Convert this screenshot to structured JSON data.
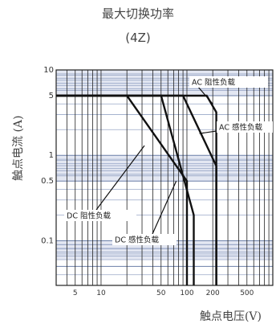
{
  "title": "最大切换功率",
  "subtitle": "(4Z)",
  "chart_data": {
    "type": "line",
    "xlabel": "触点电压(V)",
    "ylabel": "触点电流 (A)",
    "x_scale": "log",
    "y_scale": "log",
    "xlim": [
      3,
      1000
    ],
    "ylim": [
      0.03,
      10
    ],
    "x_ticks": [
      5,
      10,
      50,
      100,
      200,
      500
    ],
    "y_ticks": [
      0.1,
      0.5,
      1,
      5,
      10
    ],
    "x_tick_labels": [
      "5",
      "10",
      "50",
      "100",
      "200",
      "500"
    ],
    "y_tick_labels": [
      "0.1",
      "0.5",
      "1",
      "5",
      "10"
    ],
    "grid": true,
    "series": [
      {
        "name": "AC 阻性负载",
        "x": [
          3,
          170,
          220,
          220
        ],
        "y": [
          5,
          5,
          3.2,
          0.03
        ]
      },
      {
        "name": "AC 感性负载",
        "x": [
          3,
          90,
          220,
          220
        ],
        "y": [
          5,
          5,
          0.75,
          0.03
        ]
      },
      {
        "name": "DC 阻性负载",
        "x": [
          3,
          20,
          100,
          100
        ],
        "y": [
          5,
          5,
          0.5,
          0.03
        ]
      },
      {
        "name": "DC 感性负载",
        "x": [
          3,
          50,
          120,
          120
        ],
        "y": [
          5,
          5,
          0.2,
          0.03
        ]
      }
    ]
  }
}
